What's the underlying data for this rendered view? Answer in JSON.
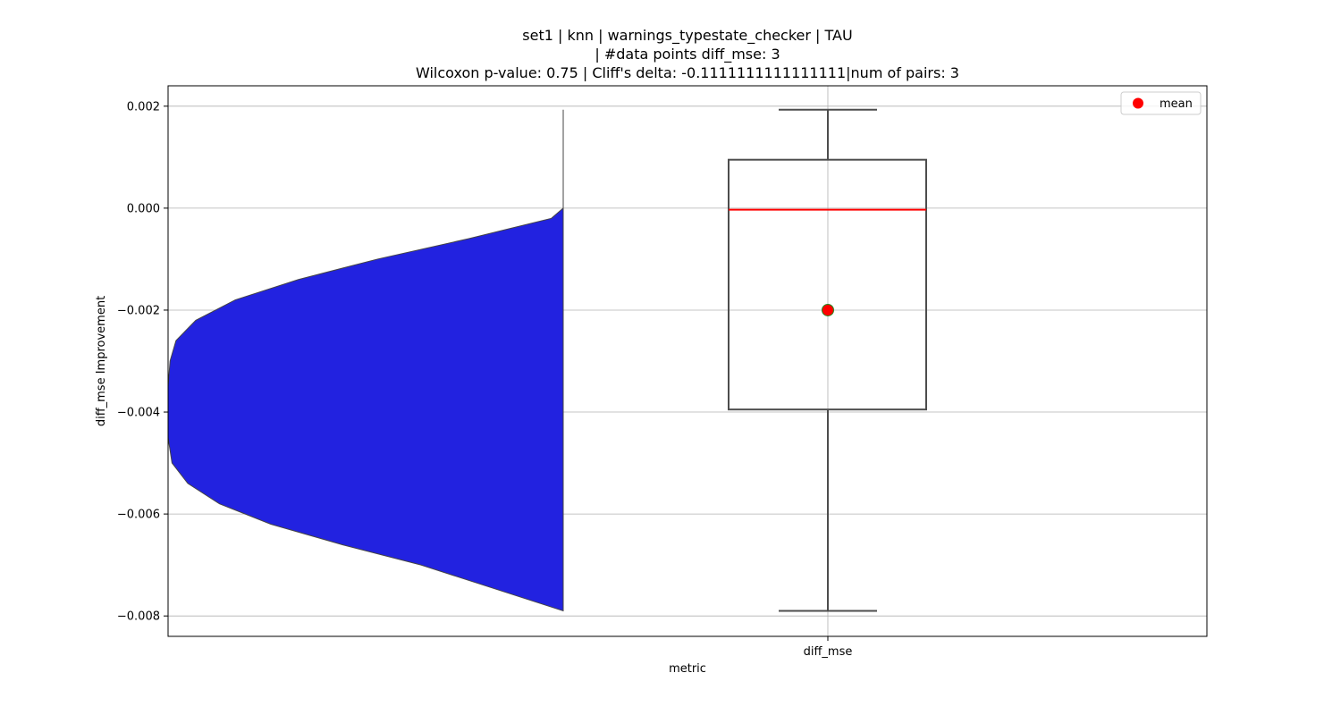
{
  "chart_data": {
    "type": "violin+box",
    "title_lines": [
      "set1 | knn | warnings_typestate_checker | TAU",
      "| #data points diff_mse: 3",
      "Wilcoxon p-value: 0.75 | Cliff's delta: -0.1111111111111111|num of pairs: 3"
    ],
    "xlabel": "metric",
    "ylabel": "diff_mse Improvement",
    "categories": [
      "diff_mse"
    ],
    "ylim": [
      -0.0084,
      0.0024
    ],
    "yticks": [
      0.002,
      0.0,
      -0.002,
      -0.004,
      -0.006,
      -0.008
    ],
    "ytick_labels": [
      "0.002",
      "0.000",
      "−0.002",
      "−0.004",
      "−0.006",
      "−0.008"
    ],
    "grid": true,
    "legend": {
      "placement": "top-right",
      "entries": [
        {
          "label": "mean",
          "color": "#ff0000"
        }
      ]
    },
    "box": {
      "category": "diff_mse",
      "whisker_low": -0.0079,
      "q1": -0.00395,
      "median": -3e-05,
      "q3": 0.00095,
      "whisker_high": 0.00193,
      "mean": -0.002,
      "median_color": "#ff0000",
      "mean_color": "#ff0000",
      "mean_edge_color": "#228b22"
    },
    "violin": {
      "color": "#2222e0",
      "y_min": -0.0079,
      "y_max": 0.00193,
      "edge": "half-violin",
      "profile": [
        [
          0.00193,
          0.0
        ],
        [
          0.0,
          0.0
        ],
        [
          -0.0002,
          0.03
        ],
        [
          -0.0006,
          0.24
        ],
        [
          -0.001,
          0.47
        ],
        [
          -0.0014,
          0.67
        ],
        [
          -0.0018,
          0.83
        ],
        [
          -0.0022,
          0.93
        ],
        [
          -0.0026,
          0.98
        ],
        [
          -0.003,
          0.995
        ],
        [
          -0.0035,
          1.0
        ],
        [
          -0.004,
          1.0
        ],
        [
          -0.0045,
          1.0
        ],
        [
          -0.005,
          0.99
        ],
        [
          -0.0054,
          0.95
        ],
        [
          -0.0058,
          0.87
        ],
        [
          -0.0062,
          0.74
        ],
        [
          -0.0066,
          0.56
        ],
        [
          -0.007,
          0.36
        ],
        [
          -0.0074,
          0.2
        ],
        [
          -0.0077,
          0.08
        ],
        [
          -0.0079,
          0.0
        ]
      ]
    }
  }
}
